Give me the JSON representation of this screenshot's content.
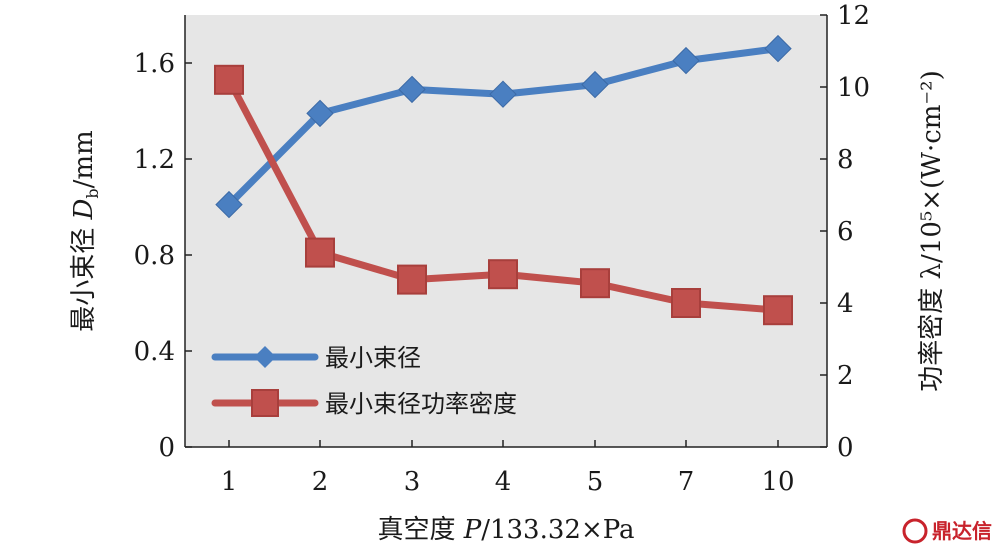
{
  "chart_data": {
    "type": "line",
    "categories": [
      "1",
      "2",
      "3",
      "4",
      "5",
      "7",
      "10"
    ],
    "xlabel_prefix": "真空度 ",
    "xlabel_var": "P",
    "xlabel_suffix": "/133.32×Pa",
    "ylabel_left_prefix": "最小束径 ",
    "ylabel_left_var": "D",
    "ylabel_left_sub": "b",
    "ylabel_left_suffix": "/mm",
    "ylabel_right": "功率密度 λ/10⁵×(W·cm⁻²)",
    "ylim_left": [
      0,
      1.8
    ],
    "ylim_right": [
      0,
      12
    ],
    "yticks_left": [
      "0",
      "0.4",
      "0.8",
      "1.2",
      "1.6"
    ],
    "yticks_right": [
      "0",
      "2",
      "4",
      "6",
      "8",
      "10",
      "12"
    ],
    "grid": false,
    "legend_position": "bottom-left",
    "series": [
      {
        "name": "最小束径",
        "axis": "left",
        "marker": "diamond",
        "color": "#4a7fc1",
        "values": [
          1.01,
          1.39,
          1.49,
          1.47,
          1.51,
          1.61,
          1.66
        ]
      },
      {
        "name": "最小束径功率密度",
        "axis": "right",
        "marker": "square",
        "color": "#c0504d",
        "values": [
          10.2,
          5.4,
          4.65,
          4.8,
          4.55,
          4.0,
          3.8
        ]
      }
    ]
  },
  "watermark": "鼎达信"
}
